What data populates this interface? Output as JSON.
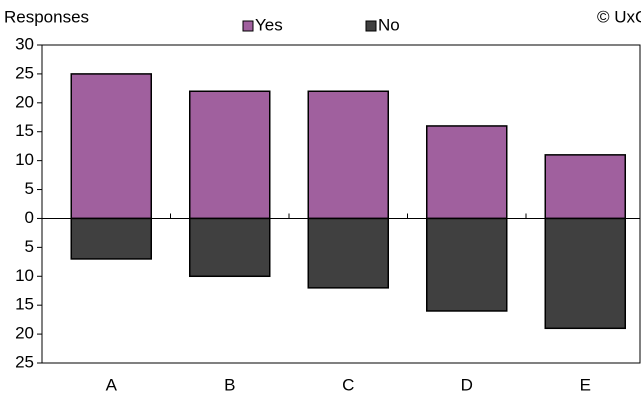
{
  "chart_data": {
    "type": "bar",
    "y_label": "Responses",
    "annotation": "© UxC",
    "categories": [
      "A",
      "B",
      "C",
      "D",
      "E"
    ],
    "series": [
      {
        "name": "Yes",
        "color": "#a0609e",
        "values": [
          25,
          22,
          22,
          16,
          11
        ]
      },
      {
        "name": "No",
        "color": "#404040",
        "values": [
          -7,
          -10,
          -12,
          -16,
          -19
        ]
      }
    ],
    "ylim": [
      -25,
      30
    ],
    "yticks": [
      30,
      25,
      20,
      15,
      10,
      5,
      0,
      {
        "value": -5,
        "label": "5"
      },
      {
        "value": -10,
        "label": "10"
      },
      {
        "value": -15,
        "label": "15"
      },
      {
        "value": -20,
        "label": "20"
      },
      {
        "value": -25,
        "label": "25"
      }
    ]
  }
}
